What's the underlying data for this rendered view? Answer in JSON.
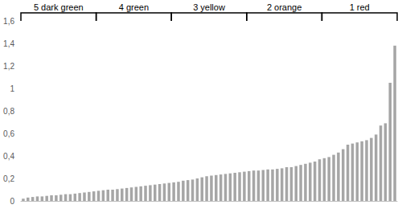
{
  "chart_data": {
    "type": "bar",
    "categories": [
      null,
      null,
      null,
      null,
      null,
      null,
      null,
      null,
      null,
      null,
      null,
      null,
      null,
      null,
      null,
      null,
      null,
      null,
      null,
      null,
      null,
      null,
      null,
      null,
      null,
      null,
      null,
      null,
      null,
      null,
      null,
      null,
      null,
      null,
      null,
      null,
      null,
      null,
      null,
      null,
      null,
      null,
      null,
      null,
      null,
      null,
      null,
      null,
      null,
      null,
      null,
      null,
      null,
      null,
      null,
      null,
      null,
      null,
      null,
      null,
      null,
      null,
      null,
      null,
      null,
      null,
      null,
      null,
      null,
      null,
      null,
      null,
      null,
      null,
      null,
      null,
      null,
      null,
      null,
      null
    ],
    "values": [
      0.02,
      0.03,
      0.035,
      0.04,
      0.04,
      0.045,
      0.05,
      0.05,
      0.055,
      0.06,
      0.06,
      0.065,
      0.07,
      0.075,
      0.08,
      0.085,
      0.09,
      0.095,
      0.1,
      0.1,
      0.105,
      0.11,
      0.115,
      0.12,
      0.125,
      0.13,
      0.135,
      0.14,
      0.145,
      0.15,
      0.155,
      0.16,
      0.165,
      0.17,
      0.18,
      0.185,
      0.19,
      0.2,
      0.21,
      0.22,
      0.225,
      0.23,
      0.235,
      0.24,
      0.245,
      0.25,
      0.255,
      0.26,
      0.265,
      0.27,
      0.27,
      0.275,
      0.28,
      0.28,
      0.285,
      0.29,
      0.3,
      0.3,
      0.31,
      0.32,
      0.33,
      0.34,
      0.35,
      0.37,
      0.38,
      0.39,
      0.41,
      0.43,
      0.46,
      0.5,
      0.51,
      0.52,
      0.53,
      0.54,
      0.56,
      0.59,
      0.67,
      0.69,
      1.05,
      1.38
    ],
    "color": "#a6a6a6",
    "ylim": [
      0,
      1.6
    ],
    "yticks": [
      0,
      {
        "value": 0.2,
        "label": "0,2"
      },
      {
        "value": 0.4,
        "label": "0,4"
      },
      {
        "value": 0.6,
        "label": "0,6"
      },
      {
        "value": 0.8,
        "label": "0,8"
      },
      1,
      {
        "value": 1.2,
        "label": "1,2"
      },
      {
        "value": 1.4,
        "label": "1,4"
      },
      {
        "value": 1.6,
        "label": "1,6"
      }
    ],
    "grid": false,
    "annotations": [
      {
        "text": "5 dark green",
        "from": 0,
        "to": 15
      },
      {
        "text": "4 green",
        "from": 16,
        "to": 31
      },
      {
        "text": "3 yellow",
        "from": 32,
        "to": 47
      },
      {
        "text": "2 orange",
        "from": 48,
        "to": 63
      },
      {
        "text": "1 red",
        "from": 64,
        "to": 79
      }
    ]
  }
}
